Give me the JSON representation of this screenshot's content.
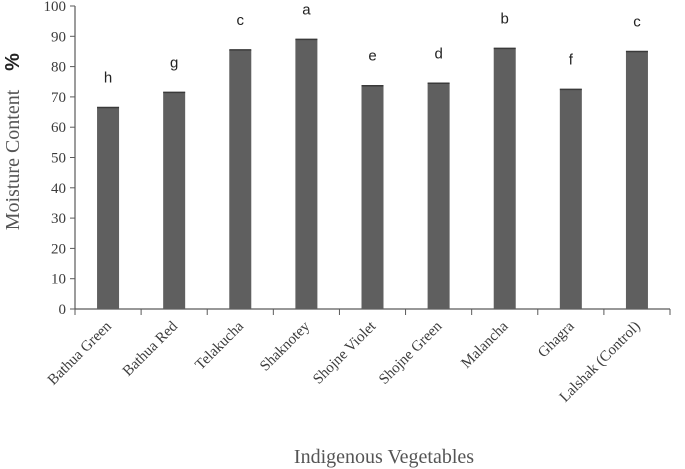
{
  "chart_data": {
    "type": "bar",
    "categories": [
      "Bathua Green",
      "Bathua Red",
      "Telakucha",
      "Shaknotey",
      "Shojne Violet",
      "Shojne Green",
      "Malancha",
      "Ghagra",
      "Lalshak (Control)"
    ],
    "values": [
      66.5,
      71.5,
      85.5,
      89.0,
      73.7,
      74.5,
      86.0,
      72.5,
      85.0
    ],
    "significance_letters": [
      "h",
      "g",
      "c",
      "a",
      "e",
      "d",
      "b",
      "f",
      "c"
    ],
    "xlabel": "Indigenous Vegetables",
    "ylabel": "Moisture Content",
    "ylabel_unit": "%",
    "ylim": [
      0,
      100
    ],
    "yticks": [
      0,
      10,
      20,
      30,
      40,
      50,
      60,
      70,
      80,
      90,
      100
    ],
    "grid": false,
    "legend": "none",
    "bar_color": "#5f5f5f",
    "axis_color": "#5a5a5a"
  }
}
